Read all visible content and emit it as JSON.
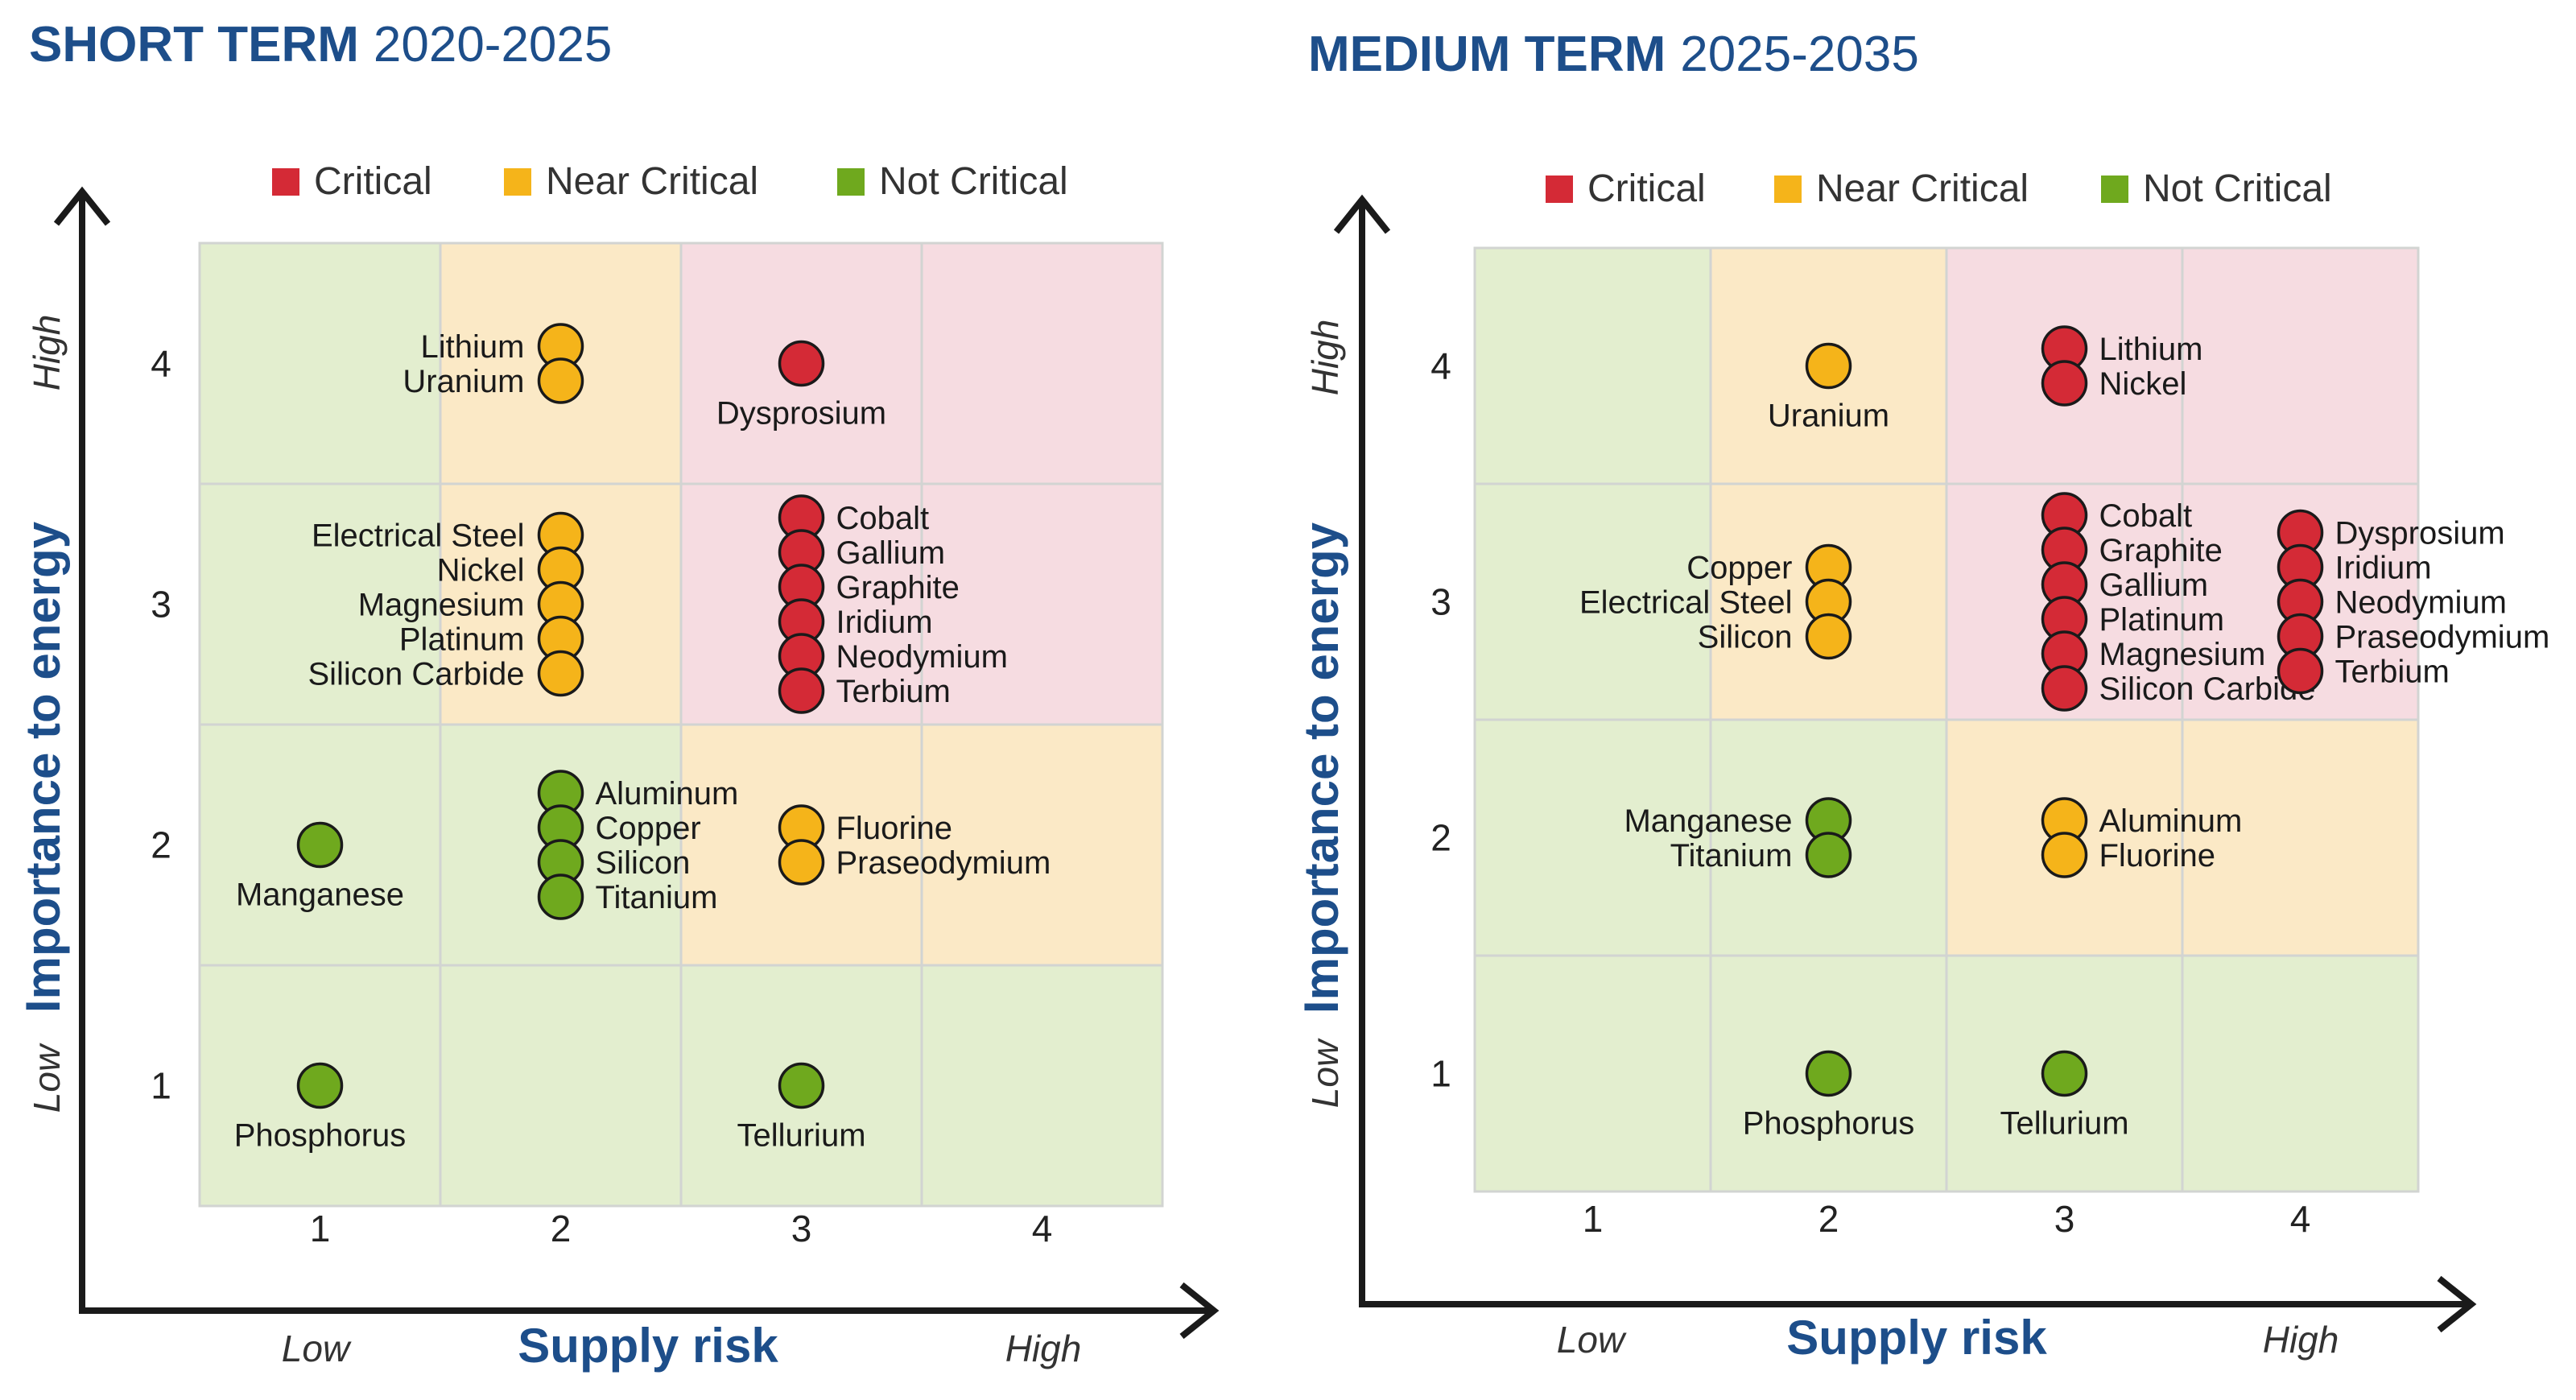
{
  "legend": {
    "critical": "Critical",
    "near_critical": "Near Critical",
    "not_critical": "Not Critical"
  },
  "colors": {
    "critical": "#d42a36",
    "near_critical": "#f5b41a",
    "not_critical": "#6fa91e",
    "bg_critical": "#f6dce1",
    "bg_near_critical": "#fbe9c6",
    "bg_not_critical": "#e3eecf",
    "axis_title": "#1d4e8a"
  },
  "chart_data": [
    {
      "type": "scatter",
      "title": "SHORT TERM",
      "subtitle": "2020-2025",
      "xlabel": "Supply risk",
      "ylabel": "Importance to energy",
      "x_low_label": "Low",
      "x_high_label": "High",
      "y_low_label": "Low",
      "y_high_label": "High",
      "x_ticks": [
        "1",
        "2",
        "3",
        "4"
      ],
      "y_ticks": [
        "1",
        "2",
        "3",
        "4"
      ],
      "xlim": [
        0.5,
        4.5
      ],
      "ylim": [
        0.5,
        4.5
      ],
      "grid": true,
      "legend_position": "top",
      "cell_zones": [
        [
          "not_critical",
          "not_critical",
          "not_critical",
          "not_critical"
        ],
        [
          "not_critical",
          "not_critical",
          "near_critical",
          "near_critical"
        ],
        [
          "not_critical",
          "near_critical",
          "critical",
          "critical"
        ],
        [
          "not_critical",
          "near_critical",
          "critical",
          "critical"
        ]
      ],
      "groups": [
        {
          "x": 2,
          "y": 4,
          "category": "near_critical",
          "elements": [
            "Lithium",
            "Uranium"
          ]
        },
        {
          "x": 3,
          "y": 4,
          "category": "critical",
          "elements": [
            "Dysprosium"
          ]
        },
        {
          "x": 2,
          "y": 3,
          "category": "near_critical",
          "elements": [
            "Electrical Steel",
            "Nickel",
            "Magnesium",
            "Platinum",
            "Silicon Carbide"
          ]
        },
        {
          "x": 3,
          "y": 3,
          "category": "critical",
          "elements": [
            "Cobalt",
            "Gallium",
            "Graphite",
            "Iridium",
            "Neodymium",
            "Terbium"
          ]
        },
        {
          "x": 1,
          "y": 2,
          "category": "not_critical",
          "elements": [
            "Manganese"
          ]
        },
        {
          "x": 2,
          "y": 2,
          "category": "not_critical",
          "elements": [
            "Aluminum",
            "Copper",
            "Silicon",
            "Titanium"
          ]
        },
        {
          "x": 3,
          "y": 2,
          "category": "near_critical",
          "elements": [
            "Fluorine",
            "Praseodymium"
          ]
        },
        {
          "x": 1,
          "y": 1,
          "category": "not_critical",
          "elements": [
            "Phosphorus"
          ]
        },
        {
          "x": 3,
          "y": 1,
          "category": "not_critical",
          "elements": [
            "Tellurium"
          ]
        }
      ]
    },
    {
      "type": "scatter",
      "title": "MEDIUM TERM",
      "subtitle": "2025-2035",
      "xlabel": "Supply risk",
      "ylabel": "Importance to energy",
      "x_low_label": "Low",
      "x_high_label": "High",
      "y_low_label": "Low",
      "y_high_label": "High",
      "x_ticks": [
        "1",
        "2",
        "3",
        "4"
      ],
      "y_ticks": [
        "1",
        "2",
        "3",
        "4"
      ],
      "xlim": [
        0.5,
        4.5
      ],
      "ylim": [
        0.5,
        4.5
      ],
      "grid": true,
      "legend_position": "top",
      "cell_zones": [
        [
          "not_critical",
          "not_critical",
          "not_critical",
          "not_critical"
        ],
        [
          "not_critical",
          "not_critical",
          "near_critical",
          "near_critical"
        ],
        [
          "not_critical",
          "near_critical",
          "critical",
          "critical"
        ],
        [
          "not_critical",
          "near_critical",
          "critical",
          "critical"
        ]
      ],
      "groups": [
        {
          "x": 2,
          "y": 4,
          "category": "near_critical",
          "elements": [
            "Uranium"
          ]
        },
        {
          "x": 3,
          "y": 4,
          "category": "critical",
          "elements": [
            "Lithium",
            "Nickel"
          ]
        },
        {
          "x": 2,
          "y": 3,
          "category": "near_critical",
          "elements": [
            "Copper",
            "Electrical Steel",
            "Silicon"
          ]
        },
        {
          "x": 3,
          "y": 3,
          "category": "critical",
          "elements": [
            "Cobalt",
            "Graphite",
            "Gallium",
            "Platinum",
            "Magnesium",
            "Silicon Carbide"
          ]
        },
        {
          "x": 4,
          "y": 3,
          "category": "critical",
          "elements": [
            "Dysprosium",
            "Iridium",
            "Neodymium",
            "Praseodymium",
            "Terbium"
          ]
        },
        {
          "x": 2,
          "y": 2,
          "category": "not_critical",
          "elements": [
            "Manganese",
            "Titanium"
          ]
        },
        {
          "x": 3,
          "y": 2,
          "category": "near_critical",
          "elements": [
            "Aluminum",
            "Fluorine"
          ]
        },
        {
          "x": 2,
          "y": 1,
          "category": "not_critical",
          "elements": [
            "Phosphorus"
          ]
        },
        {
          "x": 3,
          "y": 1,
          "category": "not_critical",
          "elements": [
            "Tellurium"
          ]
        }
      ]
    }
  ]
}
